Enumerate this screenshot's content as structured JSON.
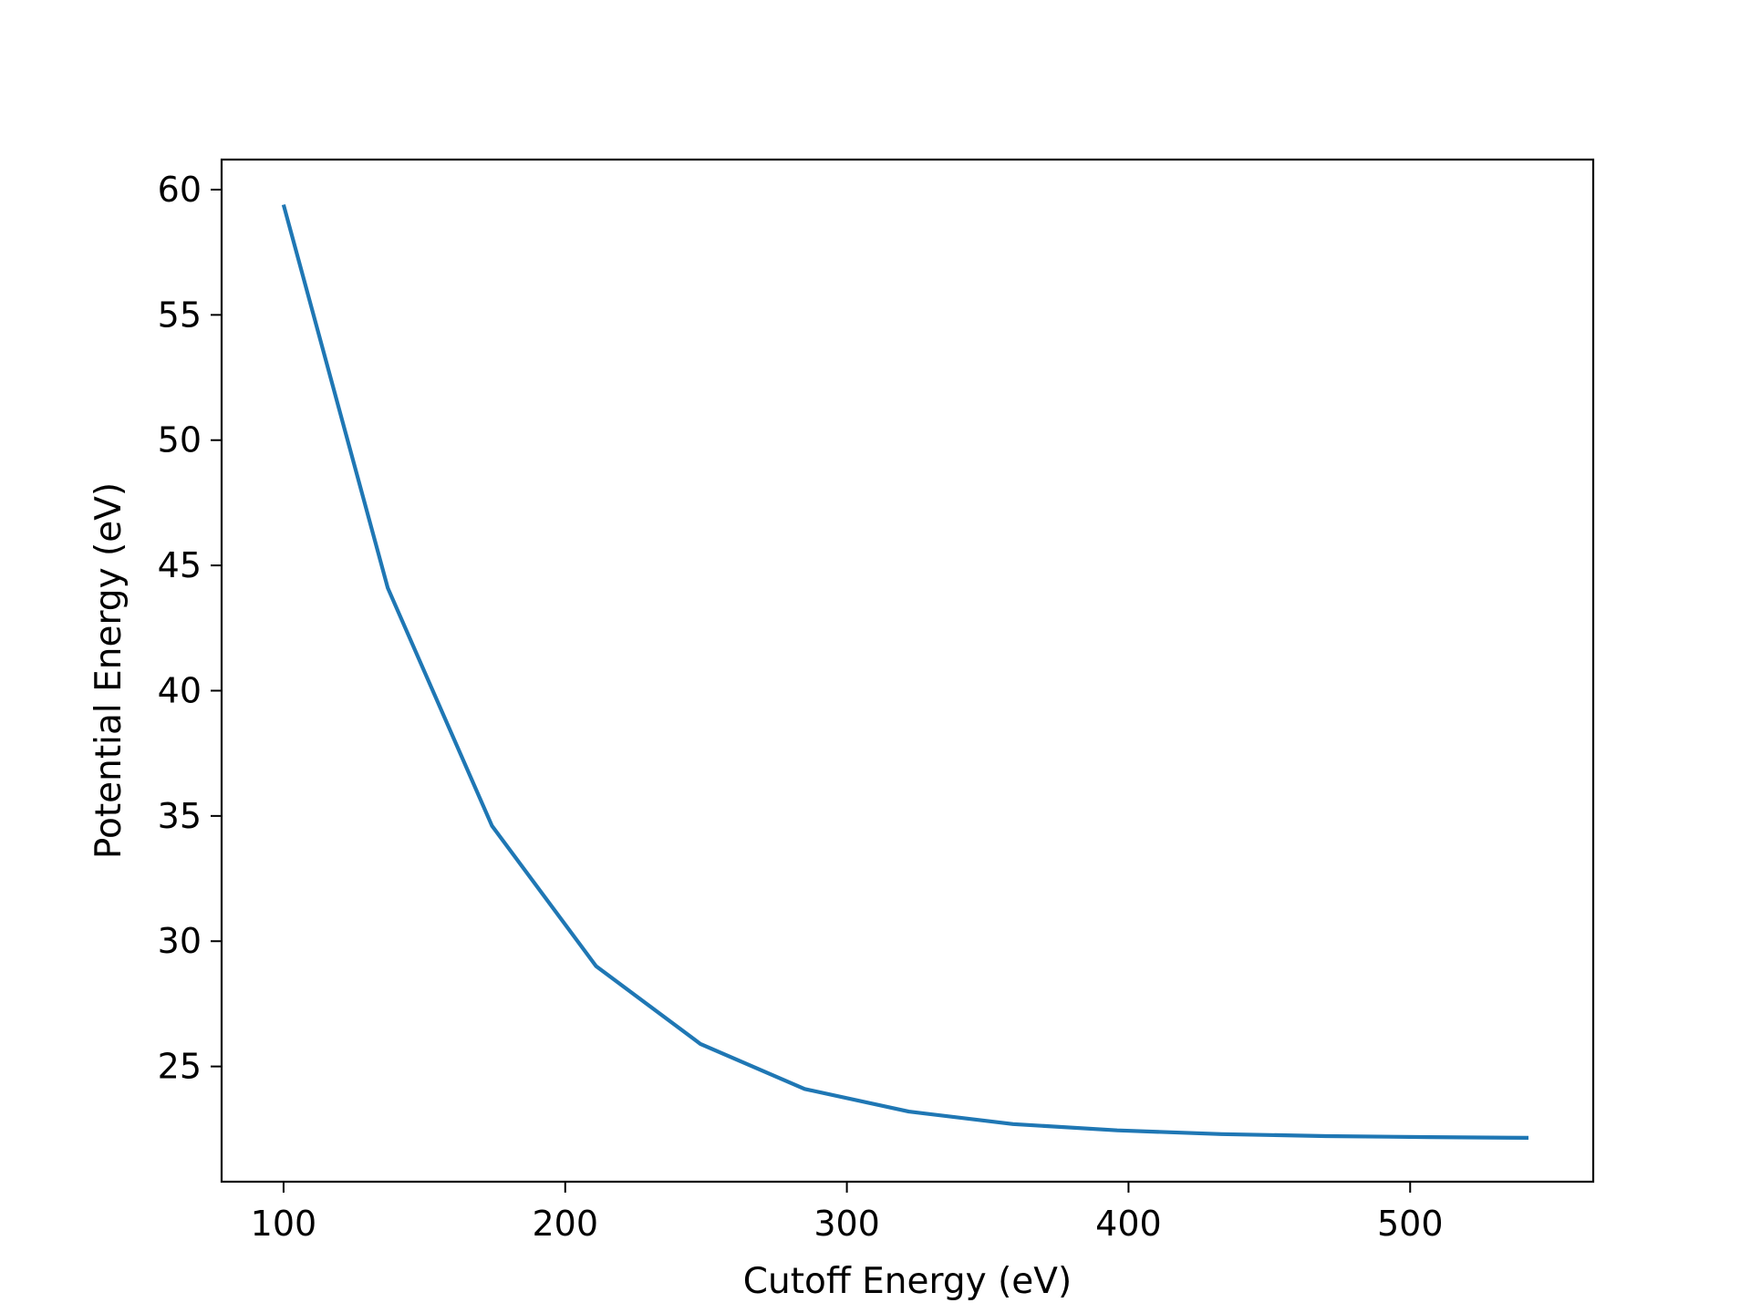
{
  "chart_data": {
    "type": "line",
    "title": "",
    "xlabel": "Cutoff Energy (eV)",
    "ylabel": "Potential Energy (eV)",
    "xlim": [
      78,
      565
    ],
    "ylim": [
      20.4,
      61.2
    ],
    "xticks": [
      100,
      200,
      300,
      400,
      500
    ],
    "yticks": [
      25,
      30,
      35,
      40,
      45,
      50,
      55,
      60
    ],
    "grid": false,
    "legend": "none",
    "series": [
      {
        "color": "#1f77b4",
        "x": [
          100,
          137,
          174,
          211,
          248,
          285,
          322,
          359,
          396,
          433,
          470,
          507,
          542
        ],
        "y": [
          59.4,
          44.1,
          34.6,
          29.0,
          25.9,
          24.1,
          23.2,
          22.7,
          22.45,
          22.3,
          22.22,
          22.18,
          22.15
        ]
      }
    ]
  }
}
